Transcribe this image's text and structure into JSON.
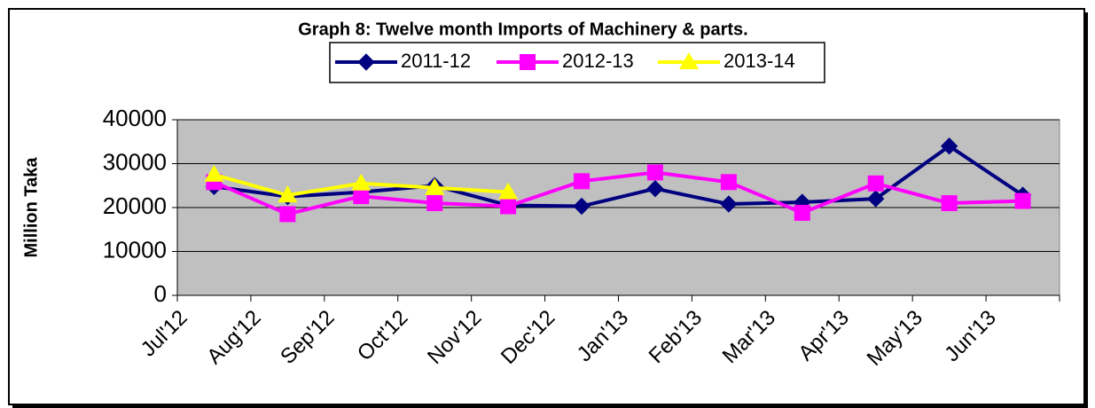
{
  "chart_data": {
    "type": "line",
    "title": "Graph 8: Twelve month Imports of Machinery & parts.",
    "y_label": "Million Taka",
    "categories": [
      "Jul'12",
      "Aug'12",
      "Sep'12",
      "Oct'12",
      "Nov'12",
      "Dec'12",
      "Jan'13",
      "Feb'13",
      "Mar'13",
      "Apr'13",
      "May'13",
      "Jun'13"
    ],
    "series": [
      {
        "name": "2011-12",
        "color": "#000080",
        "marker": "diamond",
        "values": [
          24800,
          22500,
          23500,
          25000,
          20500,
          20300,
          24300,
          20800,
          21200,
          22000,
          34000,
          22800
        ]
      },
      {
        "name": "2012-13",
        "color": "#ff00ff",
        "marker": "square",
        "values": [
          25800,
          18500,
          22600,
          21000,
          20300,
          26000,
          28000,
          25800,
          18800,
          25500,
          21000,
          21500
        ]
      },
      {
        "name": "2013-14",
        "color": "#ffff00",
        "marker": "triangle",
        "values": [
          27500,
          22800,
          25500,
          24500,
          23500,
          null,
          null,
          null,
          null,
          null,
          null,
          null
        ]
      }
    ],
    "ylim": [
      0,
      40000
    ],
    "yticks": [
      0,
      10000,
      20000,
      30000,
      40000
    ],
    "grid": true,
    "legend": "top"
  }
}
